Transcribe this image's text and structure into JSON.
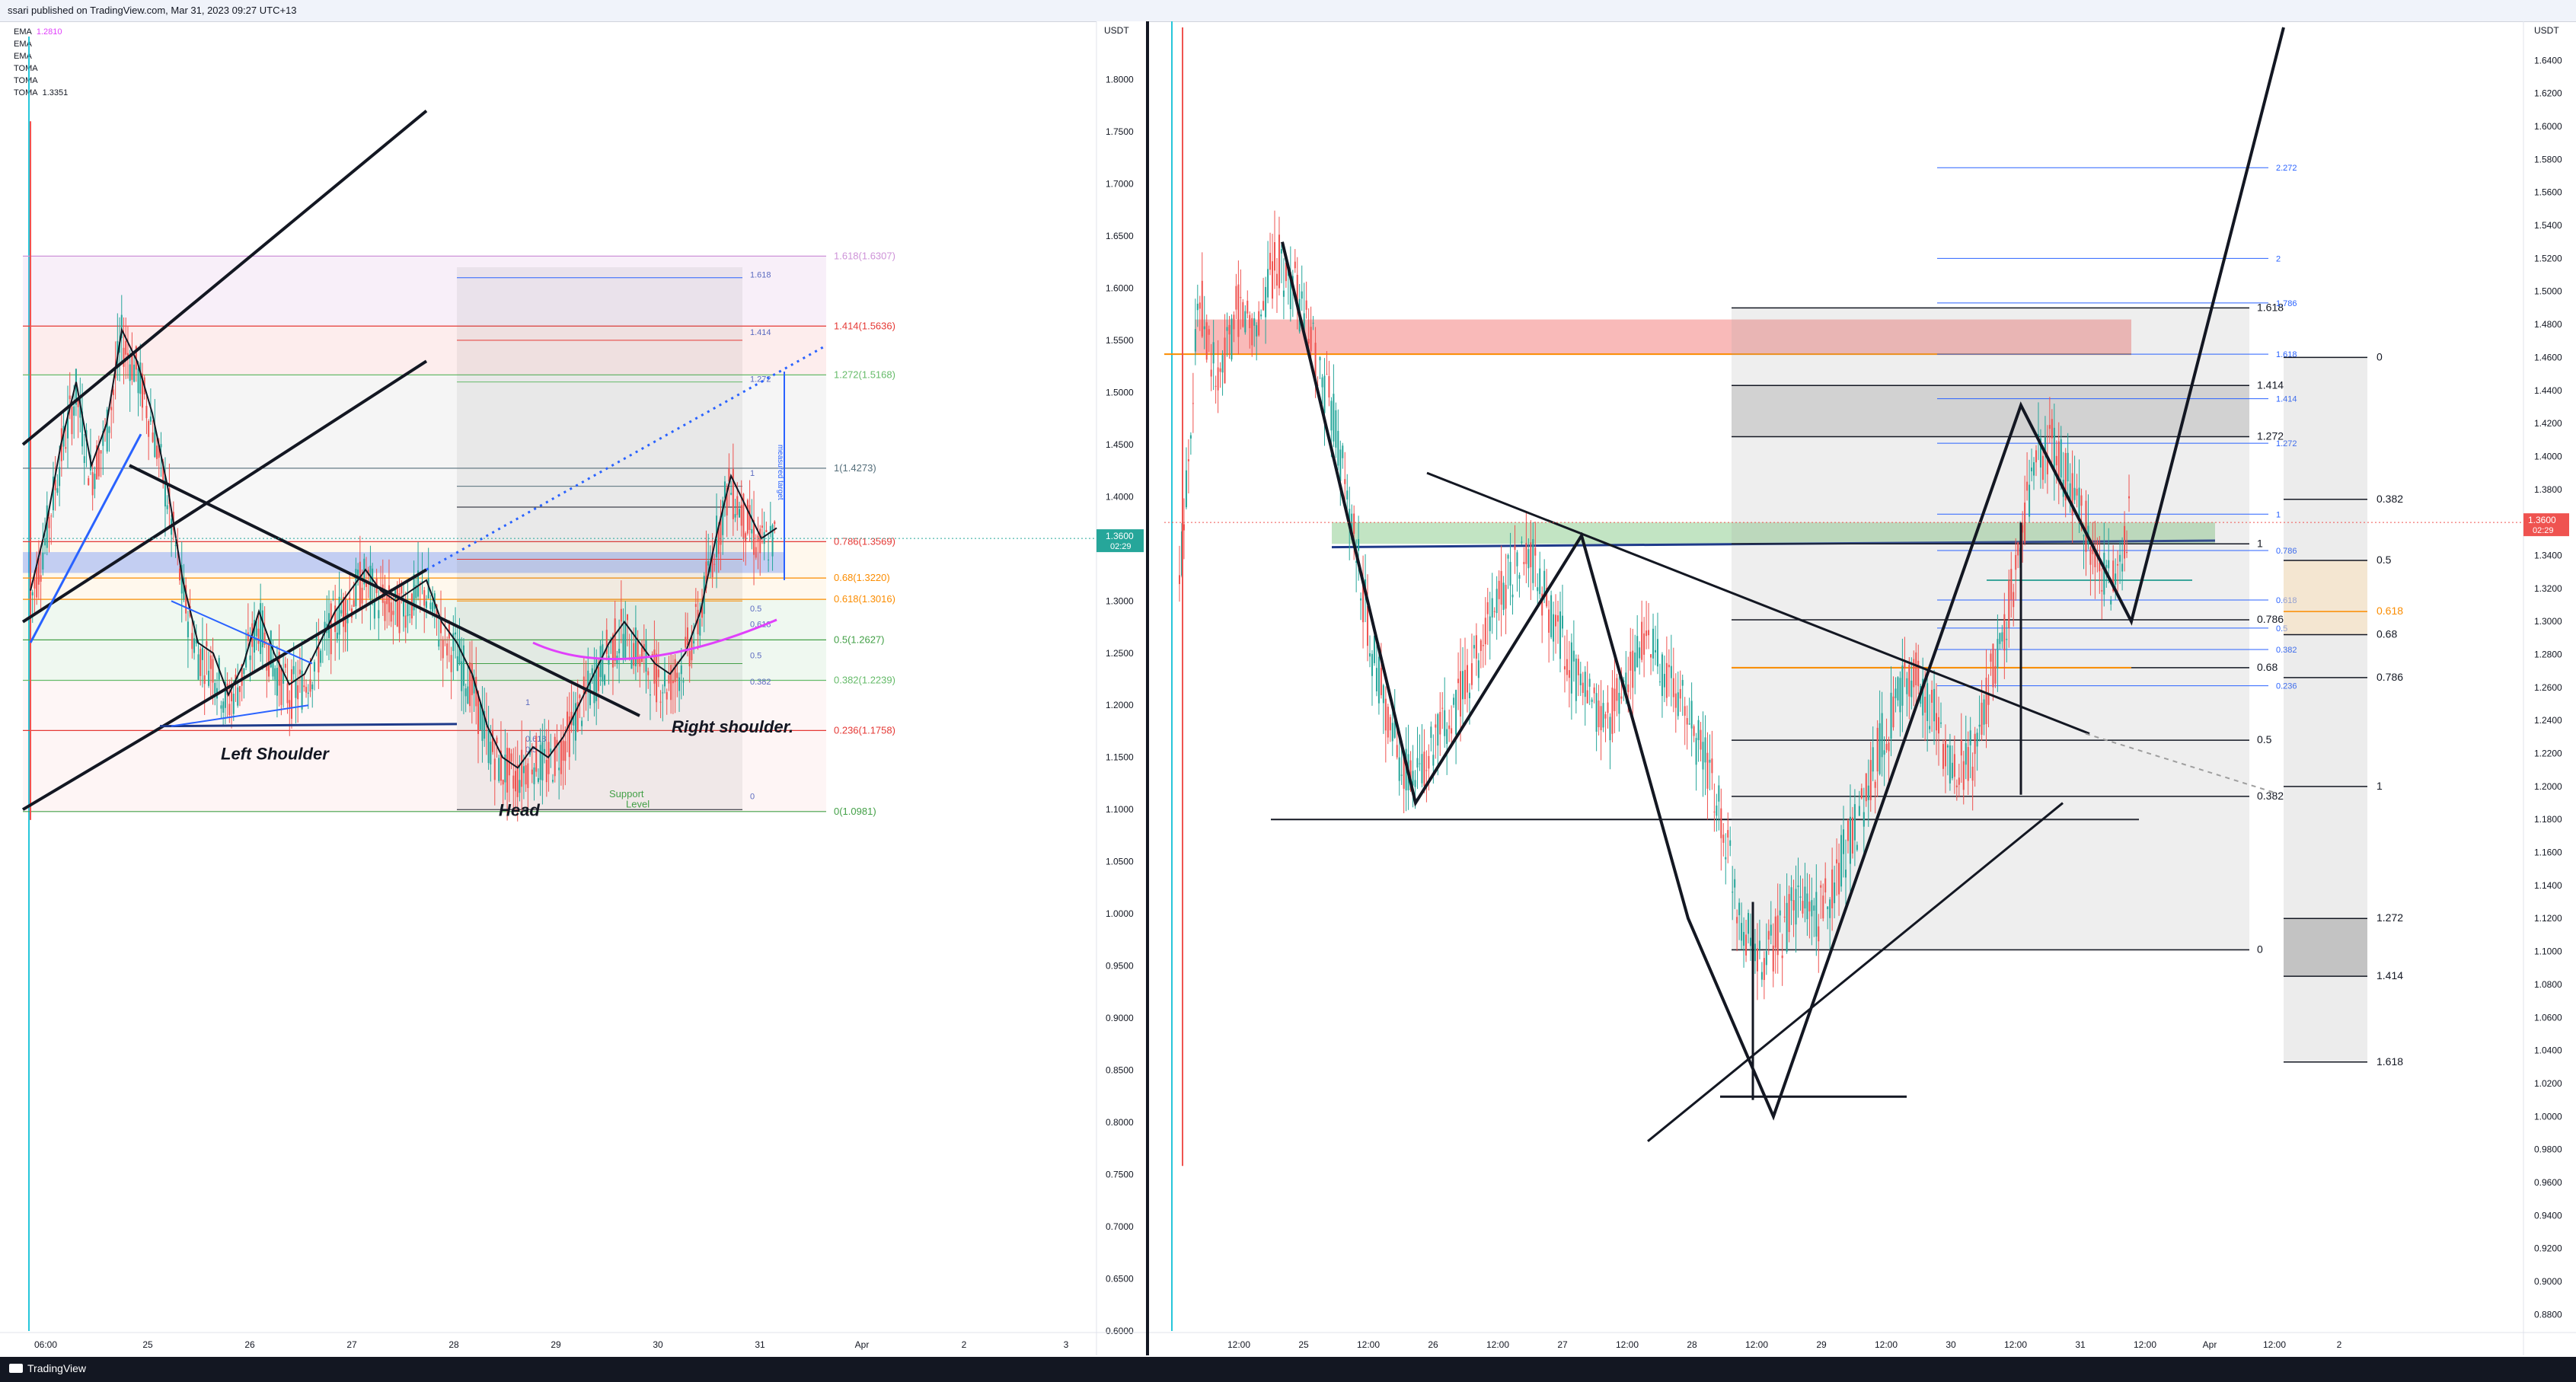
{
  "header": {
    "text": "ssari published on TradingView.com, Mar 31, 2023 09:27 UTC+13"
  },
  "footer": {
    "brand": "TradingView"
  },
  "indicators": [
    {
      "name": "EMA",
      "value": "1.2810"
    },
    {
      "name": "EMA",
      "value": ""
    },
    {
      "name": "EMA",
      "value": ""
    },
    {
      "name": "TOMA",
      "value": ""
    },
    {
      "name": "TOMA",
      "value": ""
    },
    {
      "name": "TOMA",
      "value": "1.3351"
    }
  ],
  "colors": {
    "up": "#26a69a",
    "down": "#ef5350",
    "fib_red": "#e53935",
    "fib_green": "#43a047",
    "fib_orange": "#fb8c00",
    "fib_blue": "#2962ff",
    "price_badge_left": "#26a69a",
    "price_badge_right": "#ef5350"
  },
  "chart_data": [
    {
      "type": "line",
      "panel": "left",
      "currency": "USDT",
      "ylim": [
        0.6,
        1.85
      ],
      "y_ticks": [
        "1.8000",
        "1.7500",
        "1.7000",
        "1.6500",
        "1.6000",
        "1.5500",
        "1.5000",
        "1.4500",
        "1.4000",
        "1.3500",
        "1.3000",
        "1.2500",
        "1.2000",
        "1.1500",
        "1.1000",
        "1.0500",
        "1.0000",
        "0.9500",
        "0.9000",
        "0.8500",
        "0.8000",
        "0.7500",
        "0.7000",
        "0.6500",
        "0.6000"
      ],
      "x_ticks": [
        "06:00",
        "25",
        "26",
        "27",
        "28",
        "29",
        "30",
        "31",
        "Apr",
        "2",
        "3"
      ],
      "last_price": {
        "value": "1.3600",
        "countdown": "02:29"
      },
      "fib_levels": [
        {
          "label": "1.618(1.6307)",
          "value": 1.6307
        },
        {
          "label": "1.414(1.5636)",
          "value": 1.5636
        },
        {
          "label": "1.272(1.5168)",
          "value": 1.5168
        },
        {
          "label": "1(1.4273)",
          "value": 1.4273
        },
        {
          "label": "0.786(1.3569)",
          "value": 1.3569
        },
        {
          "label": "0.68(1.3220)",
          "value": 1.322
        },
        {
          "label": "0.618(1.3016)",
          "value": 1.3016
        },
        {
          "label": "0.5(1.2627)",
          "value": 1.2627
        },
        {
          "label": "0.382(1.2239)",
          "value": 1.2239
        },
        {
          "label": "0.236(1.1758)",
          "value": 1.1758
        },
        {
          "label": "0(1.0981)",
          "value": 1.0981
        }
      ],
      "inner_fib_labels": [
        "1.618",
        "1.414",
        "1.272",
        "1",
        "0.5",
        "0.618",
        "0.5",
        "0.382",
        "0",
        "1",
        "0.618",
        "0.5"
      ],
      "annotations": [
        "Left Shoulder",
        "Head",
        "Right shoulder.",
        "Support",
        "Level",
        "measured target"
      ],
      "price_series": [
        1.3,
        1.36,
        1.44,
        1.5,
        1.42,
        1.46,
        1.55,
        1.52,
        1.47,
        1.4,
        1.31,
        1.25,
        1.24,
        1.2,
        1.23,
        1.28,
        1.24,
        1.21,
        1.22,
        1.25,
        1.28,
        1.3,
        1.32,
        1.3,
        1.29,
        1.3,
        1.31,
        1.27,
        1.25,
        1.22,
        1.17,
        1.14,
        1.13,
        1.15,
        1.14,
        1.16,
        1.19,
        1.22,
        1.25,
        1.27,
        1.25,
        1.23,
        1.22,
        1.24,
        1.28,
        1.35,
        1.41,
        1.38,
        1.35,
        1.36
      ]
    },
    {
      "type": "line",
      "panel": "right",
      "currency": "USDT",
      "ylim": [
        0.87,
        1.66
      ],
      "y_ticks": [
        "1.6400",
        "1.6200",
        "1.6000",
        "1.5800",
        "1.5600",
        "1.5400",
        "1.5200",
        "1.5000",
        "1.4800",
        "1.4600",
        "1.4400",
        "1.4200",
        "1.4000",
        "1.3800",
        "1.3600",
        "1.3400",
        "1.3200",
        "1.3000",
        "1.2800",
        "1.2600",
        "1.2400",
        "1.2200",
        "1.2000",
        "1.1800",
        "1.1600",
        "1.1400",
        "1.1200",
        "1.1000",
        "1.0800",
        "1.0600",
        "1.0400",
        "1.0200",
        "1.0000",
        "0.9800",
        "0.9600",
        "0.9400",
        "0.9200",
        "0.9000",
        "0.8800"
      ],
      "x_ticks": [
        "12:00",
        "25",
        "12:00",
        "26",
        "12:00",
        "27",
        "12:00",
        "28",
        "12:00",
        "29",
        "12:00",
        "30",
        "12:00",
        "31",
        "12:00",
        "Apr",
        "12:00",
        "2"
      ],
      "last_price": {
        "value": "1.3600",
        "countdown": "02:29"
      },
      "fib_mid_labels": [
        "1.618",
        "1.414",
        "1.272",
        "1",
        "0.786",
        "0.68",
        "0.5",
        "0.382",
        "0"
      ],
      "fib_blue_labels": [
        "2.272",
        "2",
        "1.786",
        "1.618",
        "1.414",
        "1.272",
        "1",
        "0.786",
        "0.618",
        "0.5",
        "0.382",
        "0.236"
      ],
      "fib_side_labels": [
        "0",
        "0.382",
        "0.5",
        "0.618",
        "0.68",
        "0.786",
        "1",
        "1.272",
        "1.414",
        "1.618"
      ],
      "price_series": [
        1.32,
        1.5,
        1.44,
        1.49,
        1.48,
        1.52,
        1.5,
        1.46,
        1.42,
        1.35,
        1.28,
        1.23,
        1.2,
        1.22,
        1.24,
        1.27,
        1.3,
        1.33,
        1.34,
        1.31,
        1.28,
        1.25,
        1.24,
        1.26,
        1.29,
        1.27,
        1.25,
        1.22,
        1.18,
        1.12,
        1.09,
        1.11,
        1.13,
        1.12,
        1.15,
        1.18,
        1.22,
        1.25,
        1.27,
        1.24,
        1.21,
        1.22,
        1.27,
        1.32,
        1.39,
        1.41,
        1.38,
        1.35,
        1.32,
        1.36
      ]
    }
  ]
}
